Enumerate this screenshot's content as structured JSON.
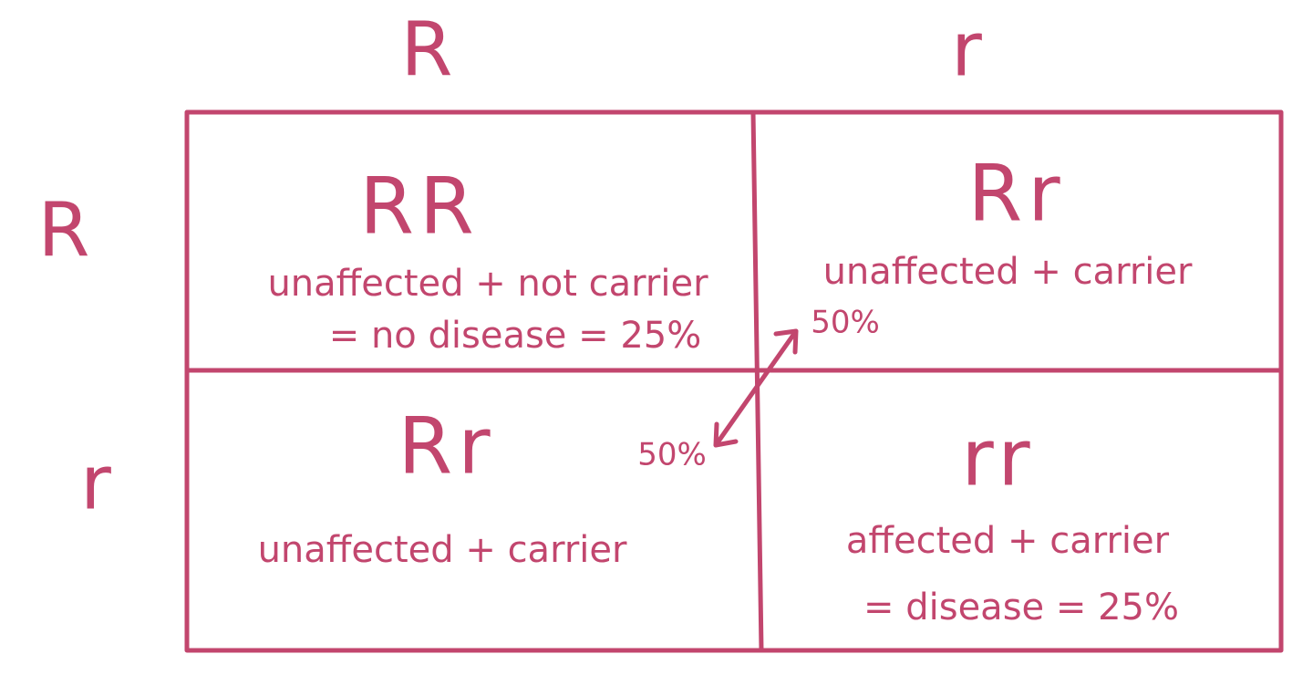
{
  "column_headers": [
    "R",
    "r"
  ],
  "row_headers": [
    "R",
    "r"
  ],
  "cells": [
    [
      {
        "genotype": "RR",
        "lines": [
          "unaffected + not carrier",
          "= no disease = 25%"
        ]
      },
      {
        "genotype": "Rr",
        "lines": [
          "unaffected + carrier"
        ]
      }
    ],
    [
      {
        "genotype": "Rr",
        "lines": [
          "unaffected + carrier"
        ]
      },
      {
        "genotype": "rr",
        "lines": [
          "affected + carrier",
          "= disease = 25%"
        ]
      }
    ]
  ],
  "arrow_labels": [
    "50%",
    "50%"
  ]
}
